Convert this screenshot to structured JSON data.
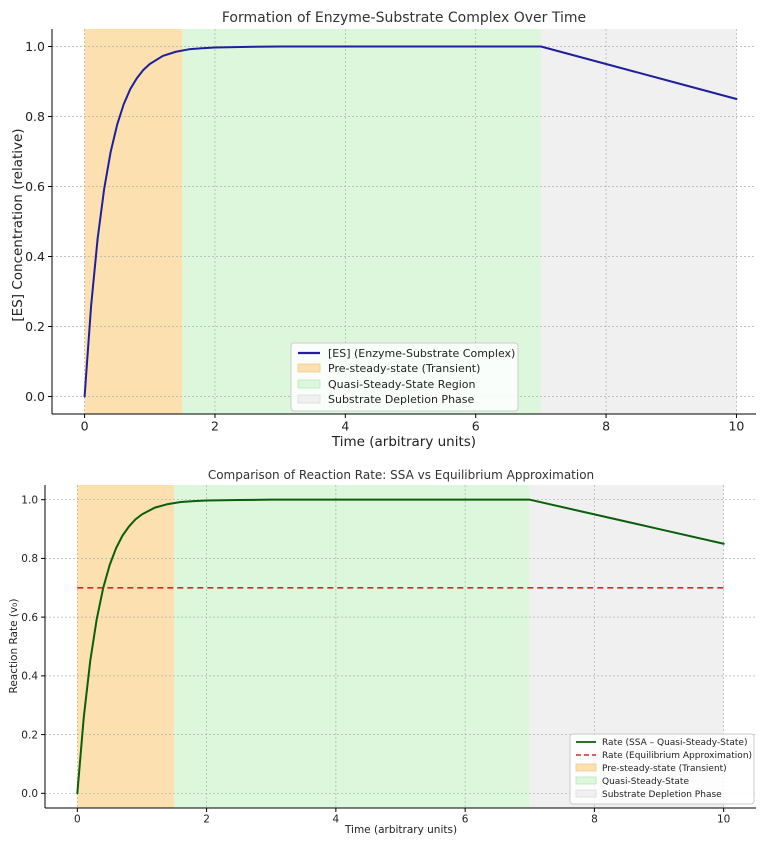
{
  "chart_data": [
    {
      "type": "line",
      "title": "Formation of Enzyme-Substrate Complex Over Time",
      "xlabel": "Time (arbitrary units)",
      "ylabel": "[ES] Concentration (relative)",
      "xlim": [
        -0.5,
        10.3
      ],
      "ylim": [
        -0.05,
        1.05
      ],
      "xticks": [
        0,
        2,
        4,
        6,
        8,
        10
      ],
      "yticks": [
        0.0,
        0.2,
        0.4,
        0.6,
        0.8,
        1.0
      ],
      "xtick_labels": [
        "0",
        "2",
        "4",
        "6",
        "8",
        "10"
      ],
      "ytick_labels": [
        "0.0",
        "0.2",
        "0.4",
        "0.6",
        "0.8",
        "1.0"
      ],
      "grid": true,
      "legend_position": "bottom-center",
      "regions": [
        {
          "name": "Pre-steady-state (Transient)",
          "x_start": 0,
          "x_end": 1.5,
          "color": "#fde0b0"
        },
        {
          "name": "Quasi-Steady-State Region",
          "x_start": 1.5,
          "x_end": 7,
          "color": "#dcf7dc"
        },
        {
          "name": "Substrate Depletion Phase",
          "x_start": 7,
          "x_end": 10,
          "color": "#f0f0f0"
        }
      ],
      "series": [
        {
          "name": "[ES] (Enzyme-Substrate Complex)",
          "color": "#1f1f9c",
          "style": "solid",
          "x": [
            0,
            0.1,
            0.2,
            0.3,
            0.4,
            0.5,
            0.6,
            0.7,
            0.8,
            0.9,
            1.0,
            1.2,
            1.4,
            1.6,
            1.8,
            2.0,
            2.5,
            3.0,
            4.0,
            5.0,
            6.0,
            7.0,
            8.0,
            9.0,
            10.0
          ],
          "y": [
            0,
            0.259,
            0.451,
            0.593,
            0.699,
            0.777,
            0.835,
            0.878,
            0.909,
            0.933,
            0.95,
            0.973,
            0.985,
            0.992,
            0.995,
            0.997,
            0.999,
            1.0,
            1.0,
            1.0,
            1.0,
            1.0,
            0.95,
            0.9,
            0.85
          ]
        }
      ]
    },
    {
      "type": "line",
      "title": "Comparison of Reaction Rate: SSA vs Equilibrium Approximation",
      "xlabel": "Time (arbitrary units)",
      "ylabel": "Reaction Rate (v₀)",
      "xlim": [
        -0.5,
        10.5
      ],
      "ylim": [
        -0.05,
        1.05
      ],
      "xticks": [
        0,
        2,
        4,
        6,
        8,
        10
      ],
      "yticks": [
        0.0,
        0.2,
        0.4,
        0.6,
        0.8,
        1.0
      ],
      "xtick_labels": [
        "0",
        "2",
        "4",
        "6",
        "8",
        "10"
      ],
      "ytick_labels": [
        "0.0",
        "0.2",
        "0.4",
        "0.6",
        "0.8",
        "1.0"
      ],
      "grid": true,
      "legend_position": "bottom-right",
      "regions": [
        {
          "name": "Pre-steady-state (Transient)",
          "x_start": 0,
          "x_end": 1.5,
          "color": "#fde0b0"
        },
        {
          "name": "Quasi-Steady-State",
          "x_start": 1.5,
          "x_end": 7,
          "color": "#dcf7dc"
        },
        {
          "name": "Substrate Depletion Phase",
          "x_start": 7,
          "x_end": 10,
          "color": "#f0f0f0"
        }
      ],
      "series": [
        {
          "name": "Rate (SSA – Quasi-Steady-State)",
          "color": "#0b5e0b",
          "style": "solid",
          "x": [
            0,
            0.1,
            0.2,
            0.3,
            0.4,
            0.5,
            0.6,
            0.7,
            0.8,
            0.9,
            1.0,
            1.2,
            1.4,
            1.6,
            1.8,
            2.0,
            2.5,
            3.0,
            4.0,
            5.0,
            6.0,
            7.0,
            8.0,
            9.0,
            10.0
          ],
          "y": [
            0,
            0.259,
            0.451,
            0.593,
            0.699,
            0.777,
            0.835,
            0.878,
            0.909,
            0.933,
            0.95,
            0.973,
            0.985,
            0.992,
            0.995,
            0.997,
            0.999,
            1.0,
            1.0,
            1.0,
            1.0,
            1.0,
            0.95,
            0.9,
            0.85
          ]
        },
        {
          "name": "Rate (Equilibrium Approximation)",
          "color": "#d62728",
          "style": "dashed",
          "x": [
            0,
            10
          ],
          "y": [
            0.7,
            0.7
          ]
        }
      ]
    }
  ]
}
